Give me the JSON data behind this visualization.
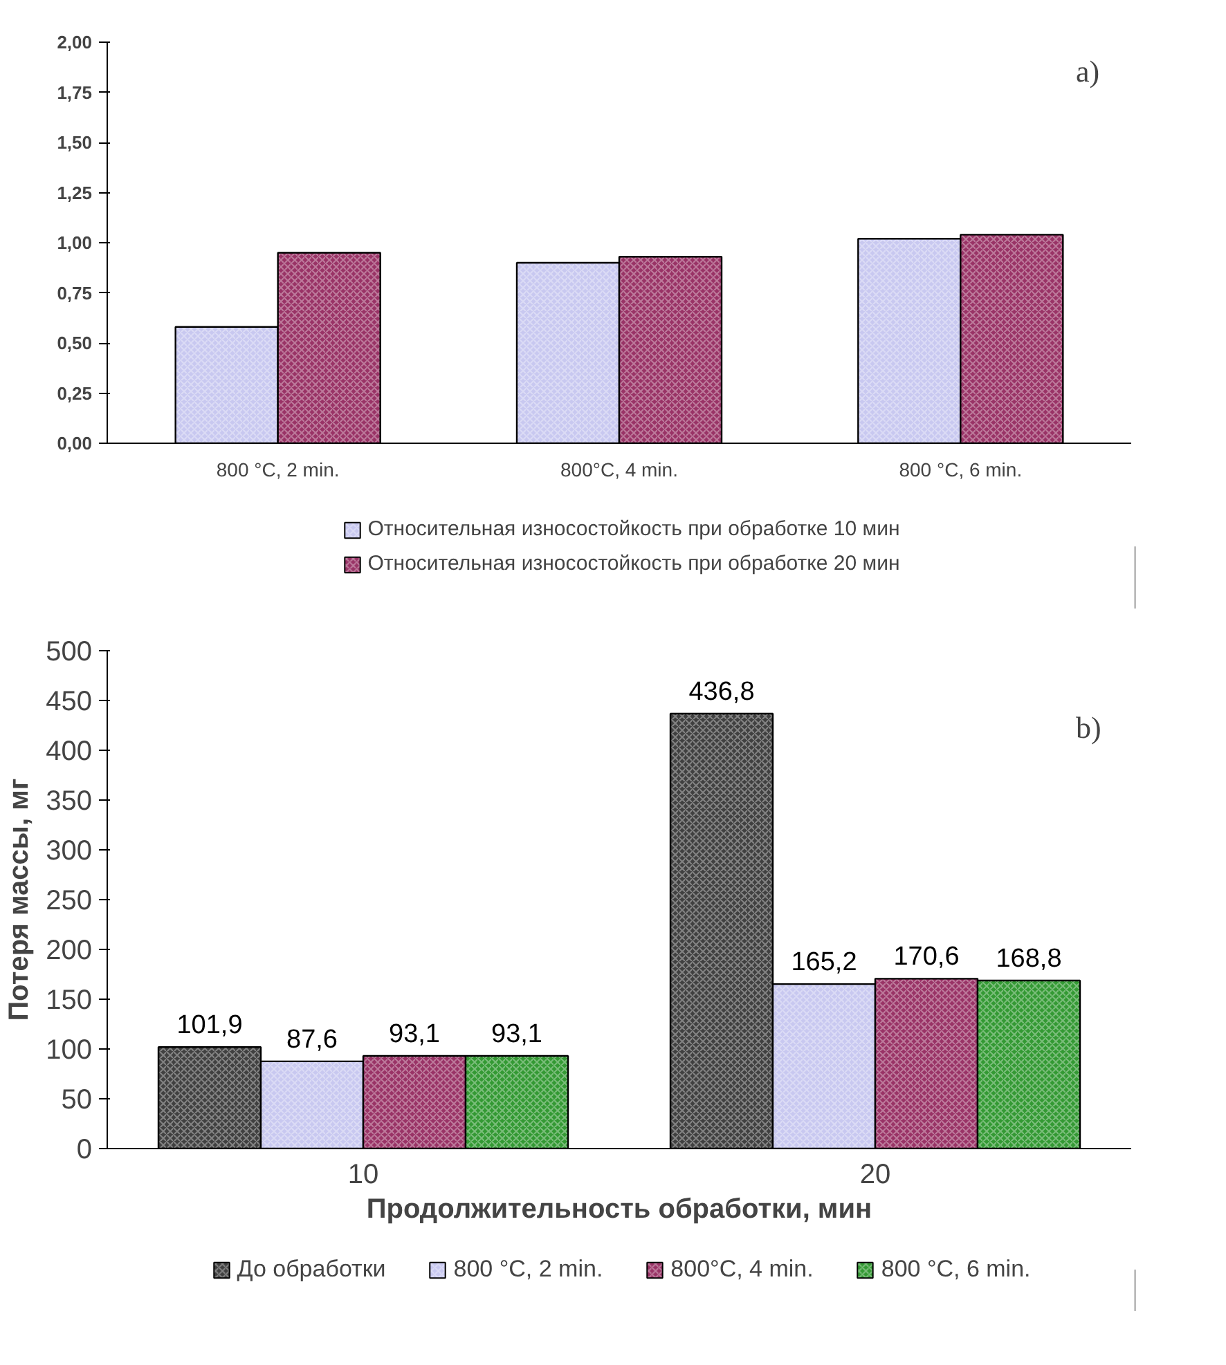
{
  "chart_data": [
    {
      "type": "bar",
      "categories": [
        "800 °C, 2 min.",
        "800°C, 4 min.",
        "800 °C, 6 min."
      ],
      "series": [
        {
          "name": "Относительная износостойкость при обработке 10 мин",
          "color": "#c8c8f0",
          "values": [
            0.58,
            0.9,
            1.02
          ]
        },
        {
          "name": "Относительная износостойкость при обработке 20 мин",
          "color": "#993366",
          "values": [
            0.95,
            0.93,
            1.04
          ]
        }
      ],
      "ylim": [
        0,
        2
      ],
      "yticks": [
        {
          "value": 0,
          "label": "0,00"
        },
        {
          "value": 0.25,
          "label": "0,25"
        },
        {
          "value": 0.5,
          "label": "0,50"
        },
        {
          "value": 0.75,
          "label": "0,75"
        },
        {
          "value": 1,
          "label": "1,00"
        },
        {
          "value": 1.25,
          "label": "1,25"
        },
        {
          "value": 1.5,
          "label": "1,50"
        },
        {
          "value": 1.75,
          "label": "1,75"
        },
        {
          "value": 2,
          "label": "2,00"
        }
      ],
      "annotations": [
        "a)"
      ],
      "legend": "bottom",
      "grid": false
    },
    {
      "type": "bar",
      "categories": [
        "10",
        "20"
      ],
      "xlabel": "Продолжительность обработки, мин",
      "ylabel": "Потеря массы, мг",
      "series": [
        {
          "name": "До обработки",
          "color": "#404040",
          "values": [
            101.9,
            436.8
          ],
          "value_labels": [
            "101,9",
            "436,8"
          ]
        },
        {
          "name": "800 °C, 2 min.",
          "color": "#c8c8f0",
          "values": [
            87.6,
            165.2
          ],
          "value_labels": [
            "87,6",
            "165,2"
          ]
        },
        {
          "name": "800°C, 4 min.",
          "color": "#993366",
          "values": [
            93.1,
            170.6
          ],
          "value_labels": [
            "93,1",
            "170,6"
          ]
        },
        {
          "name": "800 °C, 6 min.",
          "color": "#339933",
          "values": [
            93.1,
            168.8
          ],
          "value_labels": [
            "93,1",
            "168,8"
          ]
        }
      ],
      "ylim": [
        0,
        500
      ],
      "yticks": [
        0,
        50,
        100,
        150,
        200,
        250,
        300,
        350,
        400,
        450,
        500
      ],
      "annotations": [
        "b)"
      ],
      "legend": "bottom",
      "grid": false
    }
  ]
}
